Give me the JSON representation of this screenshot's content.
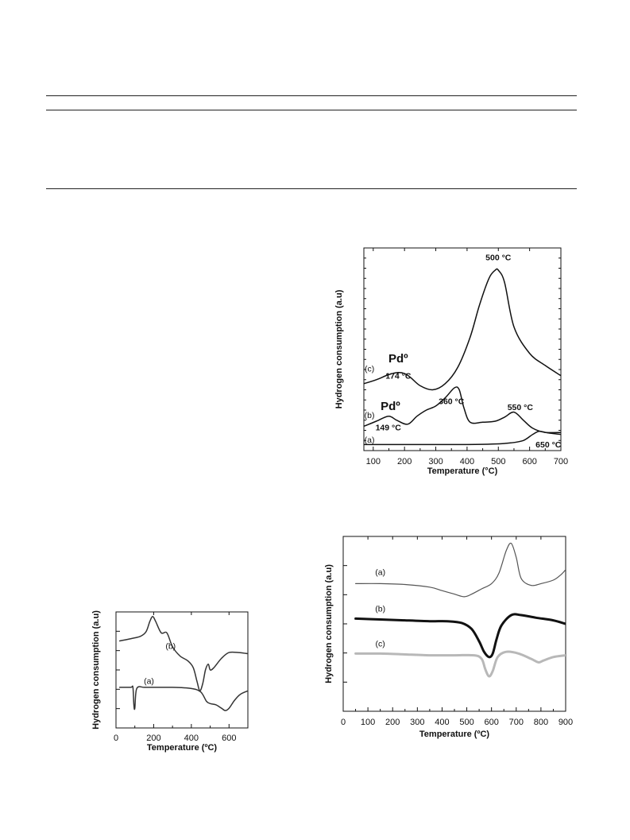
{
  "page": {
    "background": "#ffffff"
  },
  "chart_data": [
    {
      "id": "chart1",
      "type": "line",
      "title": "",
      "xlabel": "Temperature (°C)",
      "ylabel": "Hydrogen consumption (a.u)",
      "xlim": [
        70,
        700
      ],
      "ylim": [
        0,
        100
      ],
      "xticks": [
        100,
        200,
        300,
        400,
        500,
        600,
        700
      ],
      "y_tick_labels": false,
      "grid": false,
      "series": [
        {
          "name": "(c)",
          "color": "#111111",
          "x": [
            70,
            110,
            150,
            180,
            200,
            220,
            250,
            290,
            330,
            370,
            410,
            440,
            470,
            490,
            500,
            520,
            550,
            600,
            650,
            700
          ],
          "y": [
            33,
            35,
            37.5,
            38.5,
            38,
            36,
            32,
            30,
            33,
            41,
            56,
            72,
            85,
            89,
            89,
            83,
            61,
            48,
            42,
            37
          ]
        },
        {
          "name": "(b)",
          "color": "#111111",
          "x": [
            70,
            110,
            149,
            175,
            210,
            240,
            270,
            300,
            330,
            360,
            375,
            390,
            410,
            450,
            490,
            520,
            550,
            580,
            610,
            650,
            700
          ],
          "y": [
            12,
            14.5,
            17,
            15,
            13,
            17,
            20,
            22,
            26,
            31,
            30,
            21,
            14,
            14,
            14.5,
            16.5,
            19,
            15,
            11,
            9,
            9
          ]
        },
        {
          "name": "(a)",
          "color": "#111111",
          "x": [
            70,
            200,
            300,
            400,
            480,
            540,
            580,
            610,
            630,
            650,
            670,
            700
          ],
          "y": [
            3,
            3,
            3,
            3,
            3.2,
            3.8,
            5,
            8,
            9.5,
            9,
            8.5,
            8
          ]
        }
      ],
      "annotations": [
        {
          "text": "500 °C",
          "x": 500,
          "y": 94
        },
        {
          "text": "Pdº",
          "x": 180,
          "y": 43.5,
          "big": true
        },
        {
          "text": "174 °C",
          "x": 180,
          "y": 35.5
        },
        {
          "text": "Pdº",
          "x": 155,
          "y": 20,
          "big": true
        },
        {
          "text": "149 °C",
          "x": 148,
          "y": 10
        },
        {
          "text": "360 °C",
          "x": 350,
          "y": 23
        },
        {
          "text": "550 °C",
          "x": 570,
          "y": 20
        },
        {
          "text": "650 °C",
          "x": 660,
          "y": 1.5
        }
      ],
      "curve_labels": [
        {
          "text": "(c)",
          "x": 88,
          "y": 39
        },
        {
          "text": "(b)",
          "x": 88,
          "y": 16
        },
        {
          "text": "(a)",
          "x": 88,
          "y": 4
        }
      ]
    },
    {
      "id": "chart2",
      "type": "line",
      "title": "",
      "xlabel": "Temperature (ºC)",
      "ylabel": "Hydrogen consumption (a.u)",
      "xlim": [
        0,
        700
      ],
      "ylim": [
        0,
        100
      ],
      "xticks": [
        0,
        200,
        400,
        600
      ],
      "y_tick_labels": false,
      "grid": false,
      "series": [
        {
          "name": "(b)",
          "color": "#333333",
          "x": [
            20,
            80,
            130,
            160,
            180,
            195,
            210,
            240,
            270,
            300,
            340,
            380,
            410,
            430,
            445,
            460,
            475,
            490,
            500,
            520,
            560,
            600,
            650,
            700
          ],
          "y": [
            75,
            77,
            79,
            83,
            92,
            96,
            92,
            82,
            82,
            70,
            62,
            58,
            52,
            40,
            32,
            38,
            50,
            55,
            50,
            52,
            60,
            65,
            65,
            64
          ]
        },
        {
          "name": "(a)",
          "color": "#333333",
          "x": [
            20,
            40,
            80,
            90,
            95,
            100,
            110,
            150,
            200,
            300,
            400,
            450,
            480,
            500,
            530,
            560,
            580,
            600,
            630,
            660,
            700
          ],
          "y": [
            35,
            35,
            35,
            35,
            20,
            17,
            34,
            35,
            35,
            35,
            34,
            31,
            23,
            21,
            20,
            17,
            15,
            17,
            24,
            29,
            32
          ]
        }
      ],
      "curve_labels": [
        {
          "text": "(b)",
          "x": 290,
          "y": 68
        },
        {
          "text": "(a)",
          "x": 175,
          "y": 38
        }
      ]
    },
    {
      "id": "chart3",
      "type": "line",
      "title": "",
      "xlabel": "Temperature (ºC)",
      "ylabel": "Hydrogen consumption (a.u)",
      "xlim": [
        0,
        900
      ],
      "ylim": [
        0,
        100
      ],
      "xticks": [
        0,
        100,
        200,
        300,
        400,
        500,
        600,
        700,
        800,
        900
      ],
      "y_tick_labels": false,
      "grid": false,
      "series": [
        {
          "name": "(a)",
          "color": "#555555",
          "width": 1.2,
          "x": [
            50,
            150,
            250,
            350,
            400,
            450,
            490,
            520,
            560,
            600,
            630,
            660,
            680,
            700,
            720,
            760,
            800,
            850,
            880,
            900
          ],
          "y": [
            73,
            73,
            72.5,
            71,
            69,
            67,
            65.5,
            67,
            70,
            73,
            79,
            92,
            96,
            88,
            76,
            72,
            73,
            75,
            78,
            81
          ]
        },
        {
          "name": "(b)",
          "color": "#111111",
          "width": 3,
          "x": [
            50,
            150,
            250,
            350,
            420,
            480,
            520,
            550,
            570,
            590,
            605,
            620,
            640,
            680,
            720,
            780,
            850,
            900
          ],
          "y": [
            53,
            52.5,
            52,
            51.5,
            51.5,
            50.5,
            47,
            40,
            34,
            31,
            33,
            41,
            49,
            55,
            55,
            53.5,
            52,
            50
          ]
        },
        {
          "name": "(c)",
          "color": "#b8b8b8",
          "width": 3,
          "x": [
            50,
            150,
            250,
            350,
            450,
            530,
            560,
            575,
            590,
            605,
            625,
            660,
            710,
            760,
            790,
            810,
            850,
            900
          ],
          "y": [
            33,
            33,
            32.5,
            32,
            32,
            32,
            30,
            24,
            20,
            23,
            31,
            34,
            33,
            30,
            28,
            29,
            31,
            32
          ]
        }
      ],
      "curve_labels": [
        {
          "text": "(a)",
          "x": 150,
          "y": 78
        },
        {
          "text": "(b)",
          "x": 150,
          "y": 57
        },
        {
          "text": "(c)",
          "x": 150,
          "y": 37
        }
      ]
    }
  ]
}
